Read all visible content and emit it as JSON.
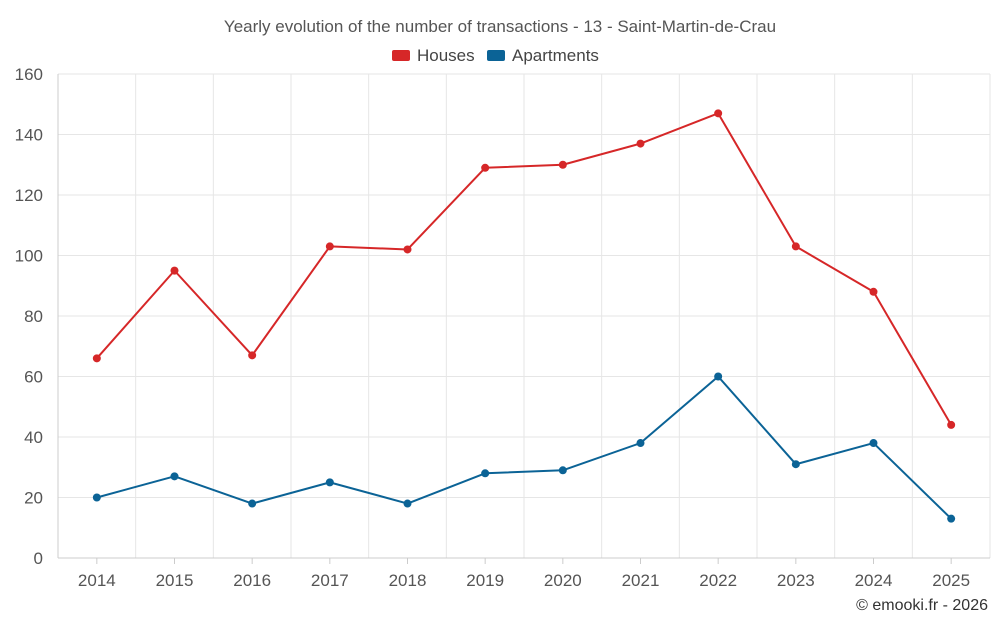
{
  "chart_data": {
    "type": "line",
    "title": "Yearly evolution of the number of transactions - 13 - Saint-Martin-de-Crau",
    "xlabel": "",
    "ylabel": "",
    "categories": [
      "2014",
      "2015",
      "2016",
      "2017",
      "2018",
      "2019",
      "2020",
      "2021",
      "2022",
      "2023",
      "2024",
      "2025"
    ],
    "ylim": [
      0,
      160
    ],
    "yticks": [
      0,
      20,
      40,
      60,
      80,
      100,
      120,
      140,
      160
    ],
    "grid": true,
    "legend_position": "top-center",
    "series": [
      {
        "name": "Houses",
        "color": "#d62728",
        "values": [
          66,
          95,
          67,
          103,
          102,
          129,
          130,
          137,
          147,
          103,
          88,
          44
        ]
      },
      {
        "name": "Apartments",
        "color": "#0b6396",
        "values": [
          20,
          27,
          18,
          25,
          18,
          28,
          29,
          38,
          60,
          31,
          38,
          13
        ]
      }
    ]
  },
  "credit": "© emooki.fr - 2026"
}
